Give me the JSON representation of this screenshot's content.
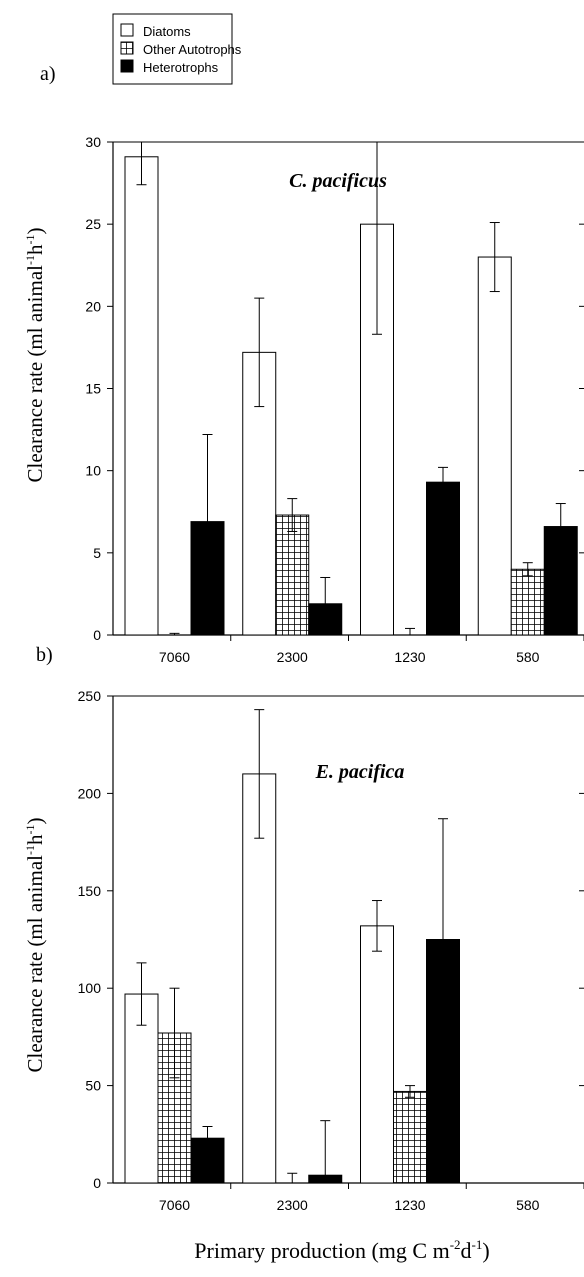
{
  "legend": [
    {
      "label": "Diatoms",
      "pattern": "open"
    },
    {
      "label": "Other Autotrophs",
      "pattern": "grid"
    },
    {
      "label": "Heterotrophs",
      "pattern": "solid"
    }
  ],
  "x_axis_label": {
    "prefix": "Primary production (mg C m",
    "exp1": "-2",
    "mid": "d",
    "exp2": "-1",
    "suffix": ")"
  },
  "colors": {
    "bar_fill_solid": "#000000",
    "bar_fill_open": "#ffffff",
    "stroke": "#000000"
  },
  "chart_data": [
    {
      "type": "bar",
      "panel_label": "a)",
      "title": "C. pacificus",
      "ylabel": {
        "prefix": "Clearance rate (ml animal",
        "exp1": "-1",
        "exp2": "-1",
        "mid": "h",
        "suffix": ")"
      },
      "ylim": [
        0,
        30
      ],
      "yticks": [
        0,
        5,
        10,
        15,
        20,
        25,
        30
      ],
      "categories": [
        "7060",
        "2300",
        "1230",
        "580"
      ],
      "series": [
        {
          "name": "Diatoms",
          "values": [
            29.1,
            17.2,
            25.0,
            23.0
          ],
          "errors": [
            1.7,
            3.3,
            6.7,
            2.1
          ]
        },
        {
          "name": "Other Autotrophs",
          "values": [
            0.0,
            7.3,
            0.0,
            4.0
          ],
          "errors": [
            0.1,
            1.0,
            0.4,
            0.4
          ]
        },
        {
          "name": "Heterotrophs",
          "values": [
            6.9,
            1.9,
            9.3,
            6.6
          ],
          "errors": [
            5.3,
            1.6,
            0.9,
            1.4
          ]
        }
      ]
    },
    {
      "type": "bar",
      "panel_label": "b)",
      "title": "E. pacifica",
      "ylabel": {
        "prefix": "Clearance rate (ml animal",
        "exp1": "-1",
        "exp2": "-1",
        "mid": "h",
        "suffix": ")"
      },
      "ylim": [
        0,
        250
      ],
      "yticks": [
        0,
        50,
        100,
        150,
        200,
        250
      ],
      "categories": [
        "7060",
        "2300",
        "1230",
        "580"
      ],
      "series": [
        {
          "name": "Diatoms",
          "values": [
            97,
            210,
            132,
            null
          ],
          "errors": [
            16,
            33,
            13,
            null
          ]
        },
        {
          "name": "Other Autotrophs",
          "values": [
            77,
            0,
            47,
            null
          ],
          "errors": [
            23,
            5,
            3,
            null
          ]
        },
        {
          "name": "Heterotrophs",
          "values": [
            23,
            4,
            125,
            null
          ],
          "errors": [
            6,
            28,
            62,
            null
          ]
        }
      ]
    }
  ]
}
